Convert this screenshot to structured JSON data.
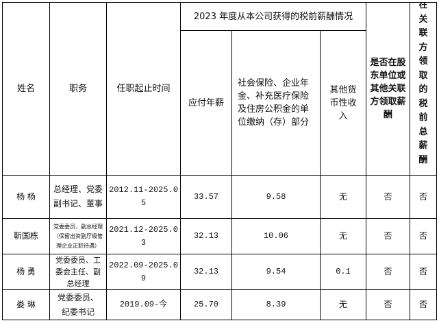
{
  "headers": {
    "name": "姓名",
    "position": "职务",
    "term": "任职起止时间",
    "group": "2023 年度从本公司获得的税前薪酬情况",
    "annual": "应付年薪",
    "social": "社会保险、企业年金、补充医疗保险及住房公积金的单位缴纳（存）部分",
    "other": "其他货币性收入",
    "related": "是否在股东单位或其他关联方领取薪酬",
    "related_total": "在关联方领取的税前总薪酬"
  },
  "rows": [
    {
      "name": "杨  杨",
      "position": "总经理、党委副书记、董事",
      "term": "2012.11-2025.05",
      "annual": "33.57",
      "social": "9.58",
      "other": "无",
      "related": "否",
      "related_total": "否"
    },
    {
      "name": "靳国栋",
      "position": "党委委员、副总经理（保留出资副厅级管理企业正职待遇）",
      "term": "2021.12-2025.03",
      "annual": "32.13",
      "social": "10.06",
      "other": "无",
      "related": "否",
      "related_total": "否"
    },
    {
      "name": "杨  勇",
      "position": "党委委员、工委会主任、副总经理",
      "term": "2022.09-2025.09",
      "annual": "32.13",
      "social": "9.54",
      "other": "0.1",
      "related": "否",
      "related_total": "否"
    },
    {
      "name": "娄  琳",
      "position": "党委委员、纪委书记",
      "term": "2019.09-今",
      "annual": "25.70",
      "social": "8.39",
      "other": "无",
      "related": "否",
      "related_total": "否"
    }
  ]
}
